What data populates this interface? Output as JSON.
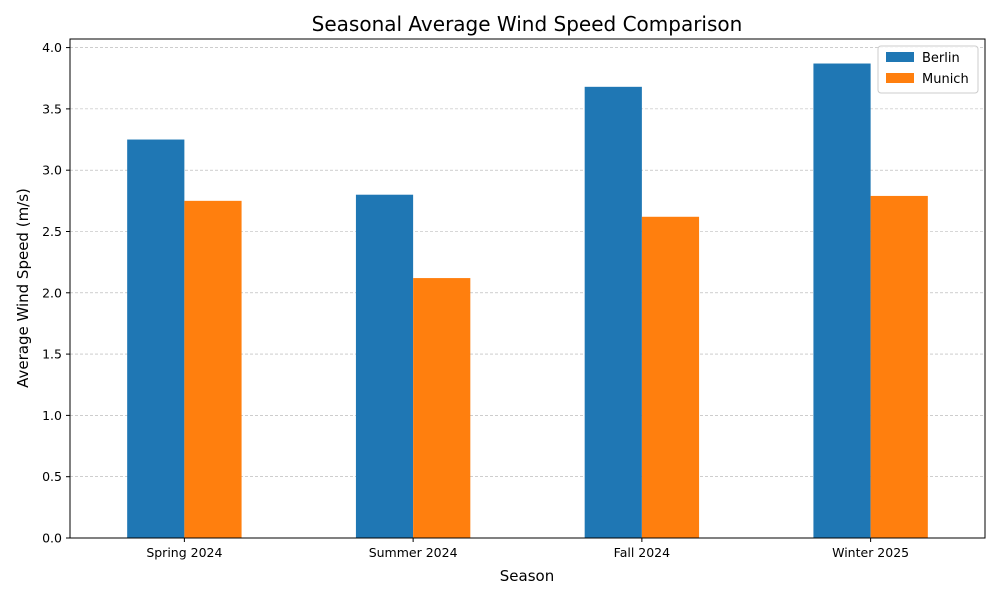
{
  "chart_data": {
    "type": "bar",
    "title": "Seasonal Average Wind Speed Comparison",
    "xlabel": "Season",
    "ylabel": "Average Wind Speed (m/s)",
    "categories": [
      "Spring 2024",
      "Summer 2024",
      "Fall 2024",
      "Winter 2025"
    ],
    "series": [
      {
        "name": "Berlin",
        "color": "#1f77b4",
        "values": [
          3.25,
          2.8,
          3.68,
          3.87
        ]
      },
      {
        "name": "Munich",
        "color": "#ff7f0e",
        "values": [
          2.75,
          2.12,
          2.62,
          2.79
        ]
      }
    ],
    "ylim": [
      0,
      4.07
    ],
    "yticks": [
      "0.0",
      "0.5",
      "1.0",
      "1.5",
      "2.0",
      "2.5",
      "3.0",
      "3.5",
      "4.0"
    ],
    "grid": "y-dashed",
    "legend_position": "top-right"
  }
}
